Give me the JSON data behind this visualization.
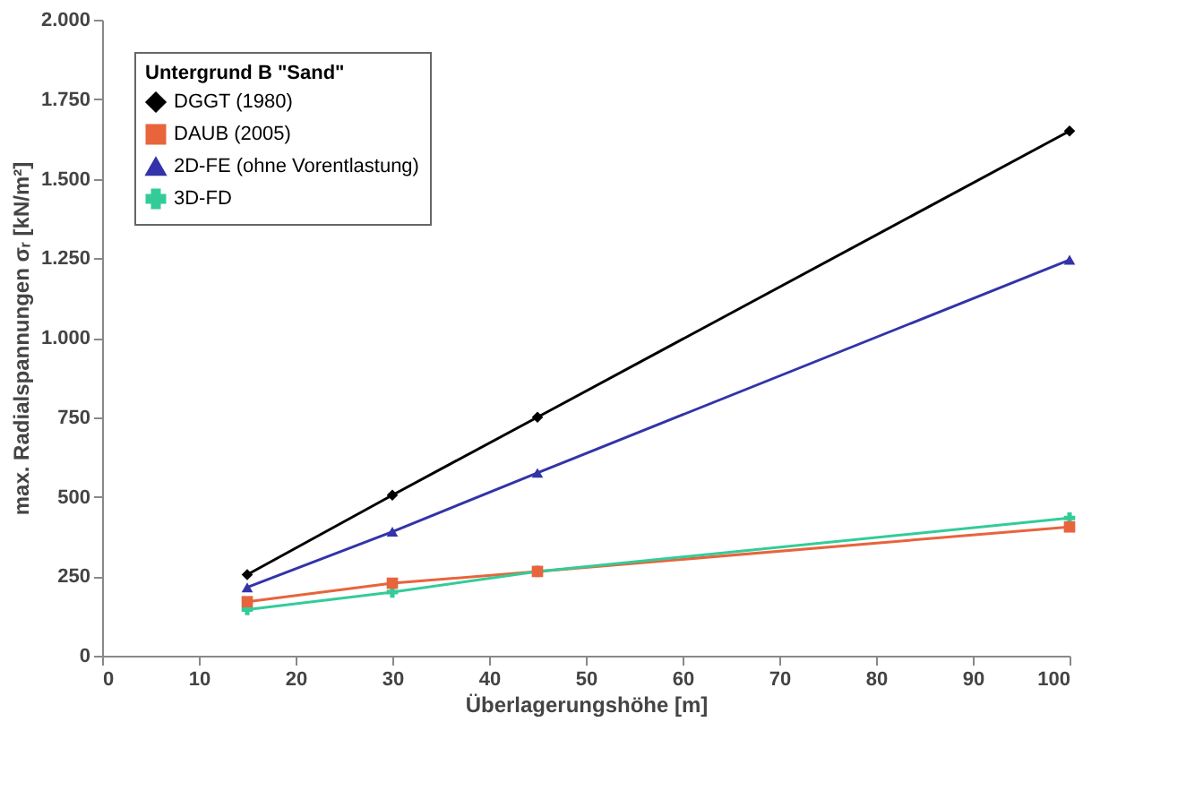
{
  "chart_data": {
    "type": "line",
    "xlabel": "Überlagerungshöhe [m]",
    "ylabel": "max. Radialspannungen σᵣ [kN/m²]",
    "legend_title": "Untergrund B \"Sand\"",
    "legend": "top left",
    "x": [
      15,
      30,
      45,
      100
    ],
    "series": [
      {
        "name": "DGGT (1980)",
        "color": "#000000",
        "marker": "diamond",
        "values": [
          255,
          505,
          750,
          1650
        ]
      },
      {
        "name": "DAUB (2005)",
        "color": "#e8643c",
        "marker": "square",
        "values": [
          170,
          228,
          265,
          405
        ]
      },
      {
        "name": "2D-FE (ohne Vorentlastung)",
        "color": "#3333aa",
        "marker": "triangle",
        "values": [
          215,
          390,
          575,
          1245
        ]
      },
      {
        "name": "3D-FD",
        "color": "#33cc99",
        "marker": "cross",
        "values": [
          145,
          200,
          265,
          433
        ]
      }
    ],
    "xlim": [
      0,
      100
    ],
    "xticks": [
      0,
      10,
      20,
      30,
      40,
      50,
      60,
      70,
      80,
      90,
      100
    ],
    "ylim": [
      0,
      2000
    ],
    "yticks": [
      0,
      250,
      500,
      750,
      {
        "value": 1000,
        "label": "1.000"
      },
      {
        "value": 1250,
        "label": "1.250"
      },
      {
        "value": 1500,
        "label": "1.500"
      },
      {
        "value": 1750,
        "label": "1.750"
      },
      {
        "value": 2000,
        "label": "2.000"
      }
    ]
  }
}
